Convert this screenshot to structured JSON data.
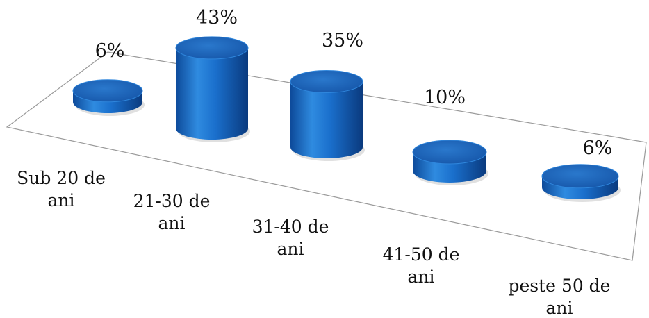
{
  "chart_data": {
    "type": "bar",
    "style": "3d-cylinder",
    "categories": [
      "Sub 20 de ani",
      "21-30 de ani",
      "31-40 de ani",
      "41-50 de ani",
      "peste 50 de ani"
    ],
    "category_lines": [
      [
        "Sub 20 de",
        "ani"
      ],
      [
        "21-30 de",
        "ani"
      ],
      [
        "31-40 de",
        "ani"
      ],
      [
        "41-50 de",
        "ani"
      ],
      [
        "peste 50 de",
        "ani"
      ]
    ],
    "values": [
      6,
      43,
      35,
      10,
      6
    ],
    "data_labels": [
      "6%",
      "43%",
      "35%",
      "10%",
      "6%"
    ],
    "unit": "%",
    "legend": "none",
    "grid": false,
    "colors": {
      "bar_light": "#2e86dc",
      "bar_mid": "#1565c0",
      "bar_dark": "#0b3f86",
      "top": "#1d63b8",
      "floor_line": "#9a9a9a"
    }
  }
}
